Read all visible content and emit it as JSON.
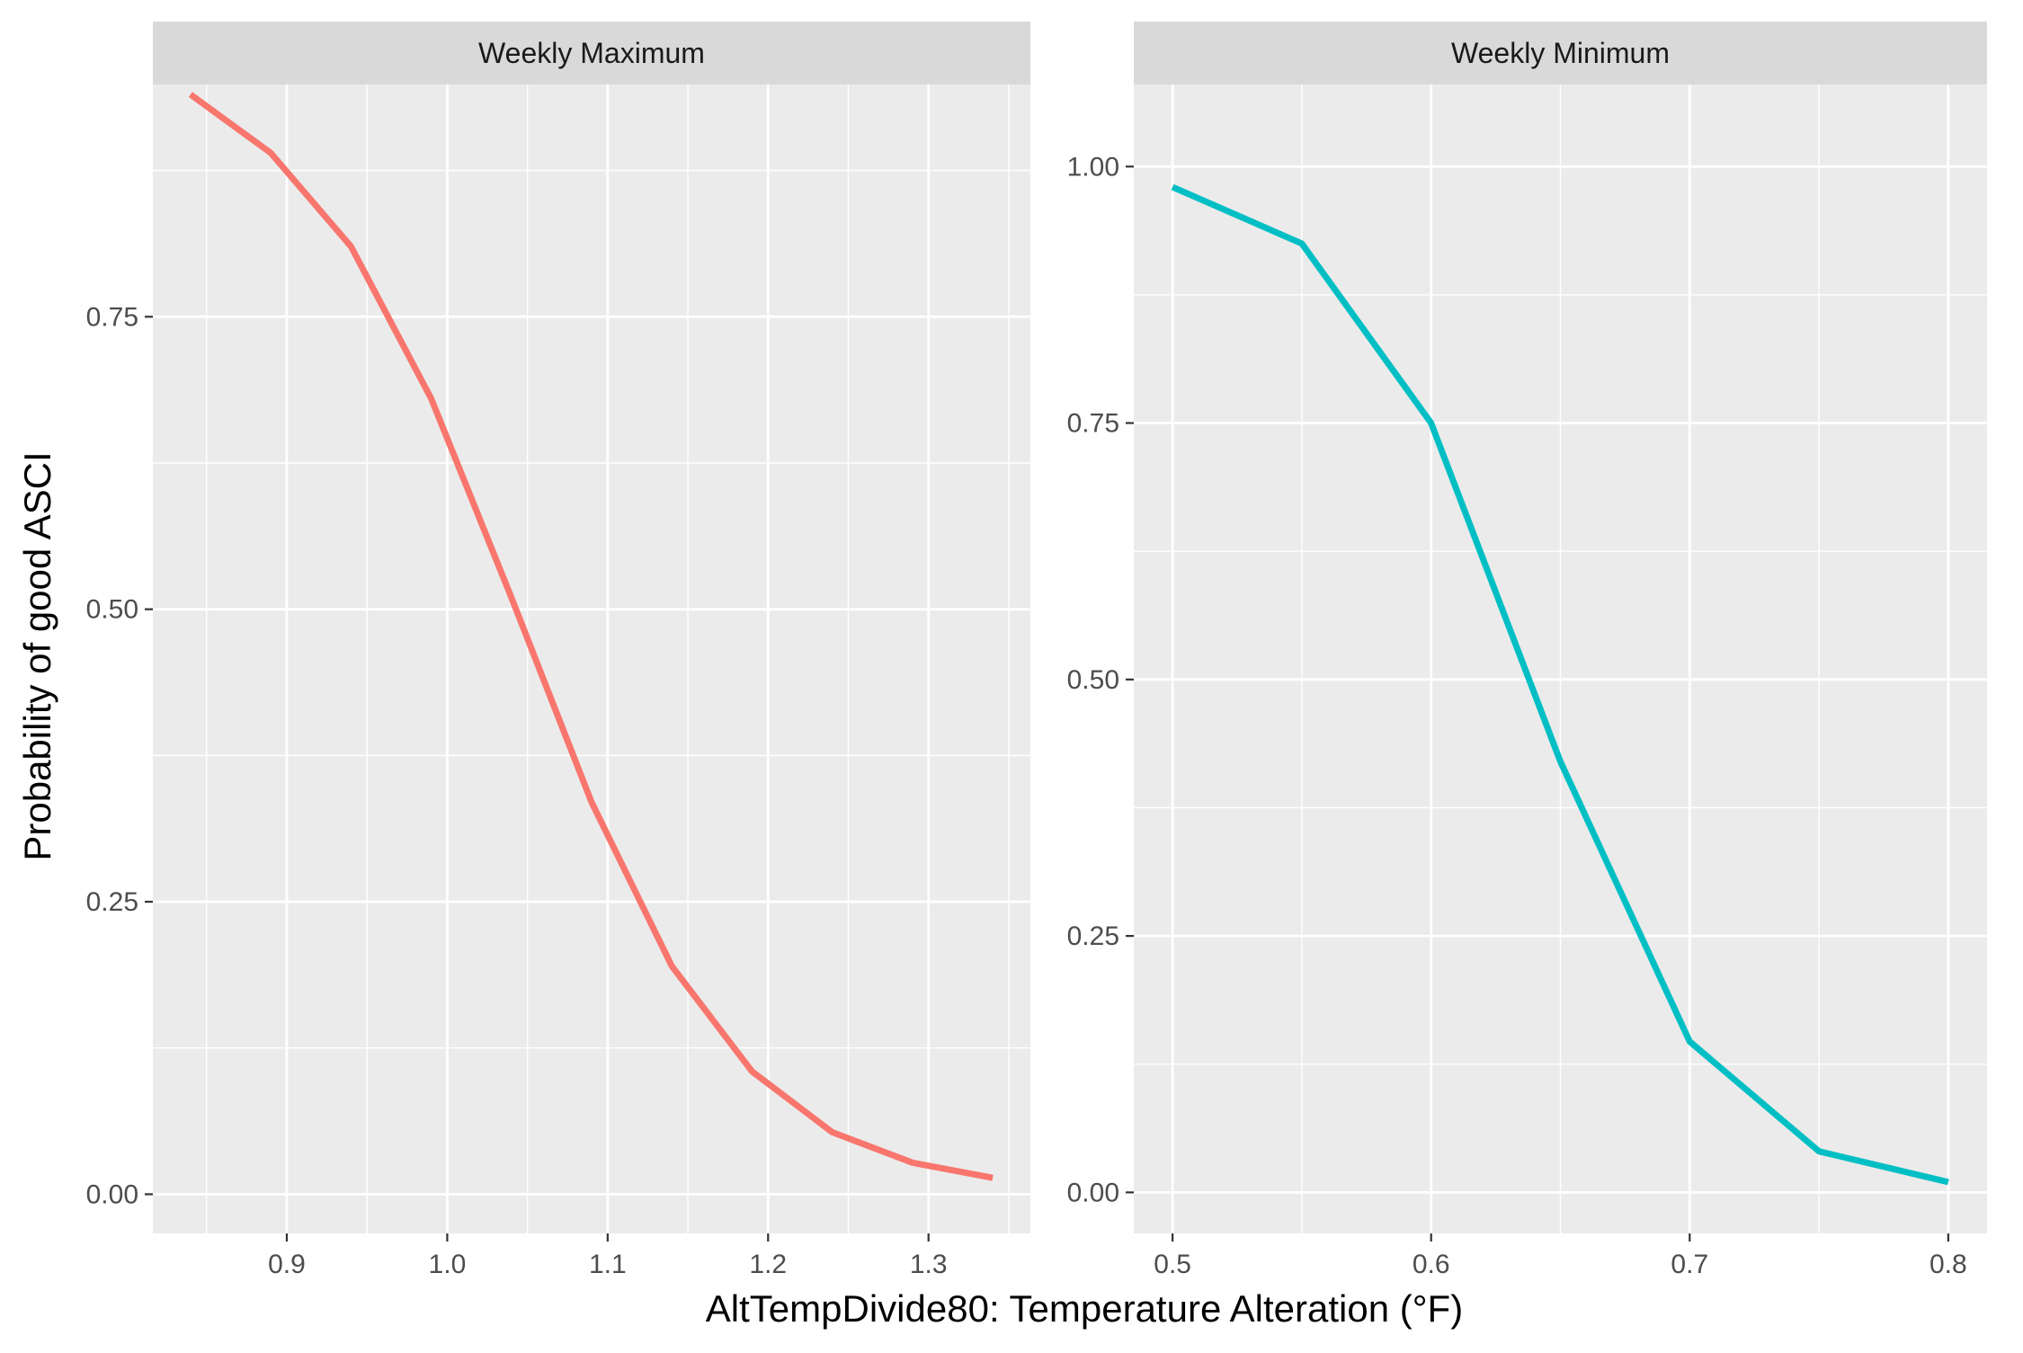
{
  "chart_data": {
    "type": "line",
    "xlabel": "AltTempDivide80: Temperature Alteration (°F)",
    "ylabel": "Probability of good ASCI",
    "grid": true,
    "legend": "none",
    "panels": [
      {
        "title": "Weekly Maximum",
        "color": "#F8766D",
        "xlim": [
          0.8165,
          1.3635
        ],
        "ylim": [
          -0.0335,
          0.9485
        ],
        "x_ticks": [
          "0.9",
          "1.0",
          "1.1",
          "1.2",
          "1.3"
        ],
        "x_tick_values": [
          0.9,
          1.0,
          1.1,
          1.2,
          1.3
        ],
        "y_ticks": [
          "0.00",
          "0.25",
          "0.50",
          "0.75"
        ],
        "y_tick_values": [
          0.0,
          0.25,
          0.5,
          0.75
        ],
        "x": [
          0.84,
          0.89,
          0.94,
          0.99,
          1.04,
          1.09,
          1.14,
          1.19,
          1.24,
          1.29,
          1.34
        ],
        "values": [
          0.94,
          0.89,
          0.81,
          0.68,
          0.51,
          0.335,
          0.195,
          0.105,
          0.053,
          0.027,
          0.014
        ]
      },
      {
        "title": "Weekly Minimum",
        "color": "#00BFC4",
        "xlim": [
          0.485,
          0.815
        ],
        "ylim": [
          -0.04,
          1.08
        ],
        "x_ticks": [
          "0.5",
          "0.6",
          "0.7",
          "0.8"
        ],
        "x_tick_values": [
          0.5,
          0.6,
          0.7,
          0.8
        ],
        "y_ticks": [
          "0.00",
          "0.25",
          "0.50",
          "0.75",
          "1.00"
        ],
        "y_tick_values": [
          0.0,
          0.25,
          0.5,
          0.75,
          1.0
        ],
        "x": [
          0.5,
          0.55,
          0.6,
          0.65,
          0.7,
          0.75,
          0.8
        ],
        "values": [
          0.98,
          0.925,
          0.75,
          0.42,
          0.147,
          0.04,
          0.01
        ]
      }
    ]
  }
}
